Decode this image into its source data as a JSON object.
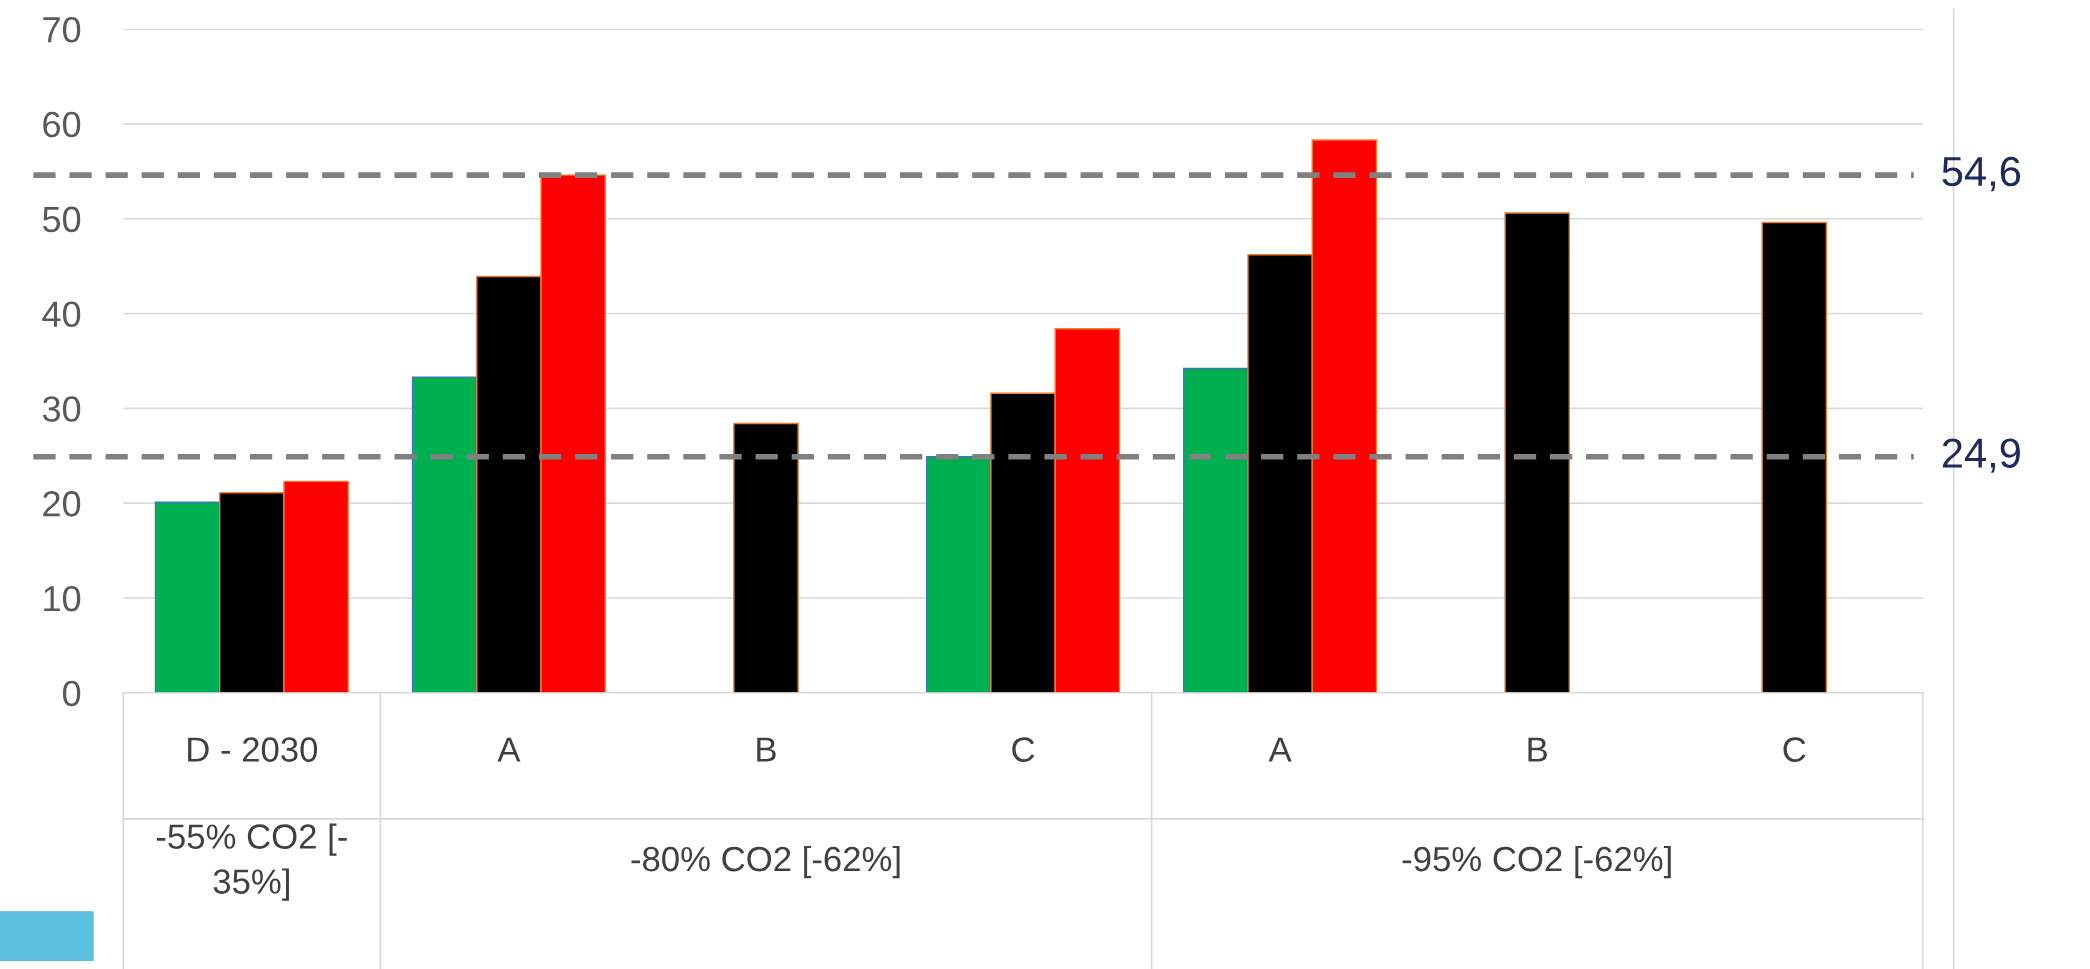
{
  "chart_data": {
    "type": "bar",
    "categories": [
      "D - 2030",
      "A",
      "B",
      "C",
      "A",
      "B",
      "C"
    ],
    "series": [
      {
        "color": "#00b050",
        "values": [
          20.1,
          33.3,
          null,
          24.9,
          34.2,
          null,
          null
        ]
      },
      {
        "color": "#000000",
        "values": [
          21.1,
          43.9,
          28.4,
          31.6,
          46.2,
          50.6,
          49.6
        ]
      },
      {
        "color": "#ff0000",
        "values": [
          22.3,
          54.6,
          null,
          38.4,
          58.3,
          null,
          null
        ]
      }
    ],
    "annotations": [
      "-55% CO2 [-\n35%]",
      "-80% CO2 [-62%]",
      "-95% CO2 [-62%]"
    ],
    "ylim": [
      0,
      70
    ],
    "yticks": [
      0,
      10,
      20,
      30,
      40,
      50,
      60,
      70
    ],
    "grid": "y",
    "ref_lines": [
      {
        "axis": "y",
        "value": 54.6,
        "label": "54,6",
        "color": "#808080",
        "line_style": "dashed"
      },
      {
        "axis": "y",
        "value": 24.9,
        "label": "24,9",
        "color": "#808080",
        "line_style": "dashed"
      }
    ]
  }
}
